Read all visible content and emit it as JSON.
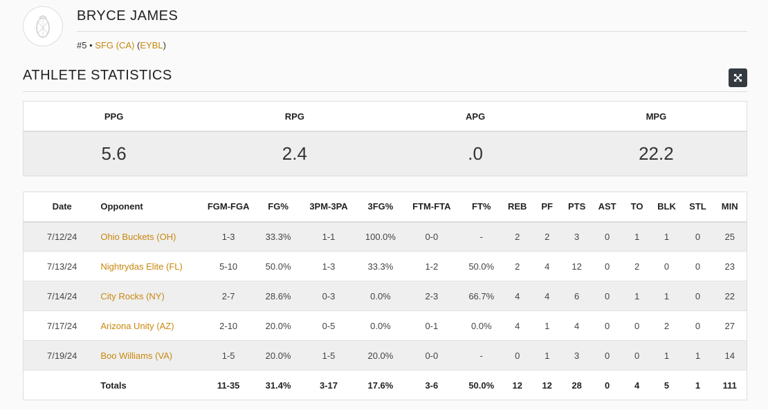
{
  "athlete": {
    "name": "BRYCE JAMES",
    "number": "#5",
    "separator": "•",
    "team": "SFG (CA)",
    "league": "EYBL"
  },
  "section_title": "ATHLETE STATISTICS",
  "summary": [
    {
      "label": "PPG",
      "value": "5.6"
    },
    {
      "label": "RPG",
      "value": "2.4"
    },
    {
      "label": "APG",
      "value": ".0"
    },
    {
      "label": "MPG",
      "value": "22.2"
    }
  ],
  "table": {
    "headers": [
      "Date",
      "Opponent",
      "FGM-FGA",
      "FG%",
      "3PM-3PA",
      "3FG%",
      "FTM-FTA",
      "FT%",
      "REB",
      "PF",
      "PTS",
      "AST",
      "TO",
      "BLK",
      "STL",
      "MIN"
    ],
    "rows": [
      [
        "7/12/24",
        "Ohio Buckets (OH)",
        "1-3",
        "33.3%",
        "1-1",
        "100.0%",
        "0-0",
        "-",
        "2",
        "2",
        "3",
        "0",
        "1",
        "1",
        "0",
        "25"
      ],
      [
        "7/13/24",
        "Nightrydas Elite (FL)",
        "5-10",
        "50.0%",
        "1-3",
        "33.3%",
        "1-2",
        "50.0%",
        "2",
        "4",
        "12",
        "0",
        "2",
        "0",
        "0",
        "23"
      ],
      [
        "7/14/24",
        "City Rocks (NY)",
        "2-7",
        "28.6%",
        "0-3",
        "0.0%",
        "2-3",
        "66.7%",
        "4",
        "4",
        "6",
        "0",
        "1",
        "1",
        "0",
        "22"
      ],
      [
        "7/17/24",
        "Arizona Unity (AZ)",
        "2-10",
        "20.0%",
        "0-5",
        "0.0%",
        "0-1",
        "0.0%",
        "4",
        "1",
        "4",
        "0",
        "0",
        "2",
        "0",
        "27"
      ],
      [
        "7/19/24",
        "Boo Williams (VA)",
        "1-5",
        "20.0%",
        "1-5",
        "20.0%",
        "0-0",
        "-",
        "0",
        "1",
        "3",
        "0",
        "0",
        "1",
        "1",
        "14"
      ]
    ],
    "totals": [
      "",
      "Totals",
      "11-35",
      "31.4%",
      "3-17",
      "17.6%",
      "3-6",
      "50.0%",
      "12",
      "12",
      "28",
      "0",
      "4",
      "5",
      "1",
      "111"
    ]
  },
  "icons": {
    "avatar": "team-logo-icon",
    "expand": "expand-icon"
  },
  "colors": {
    "link": "#c8870d",
    "button": "#343a40"
  }
}
